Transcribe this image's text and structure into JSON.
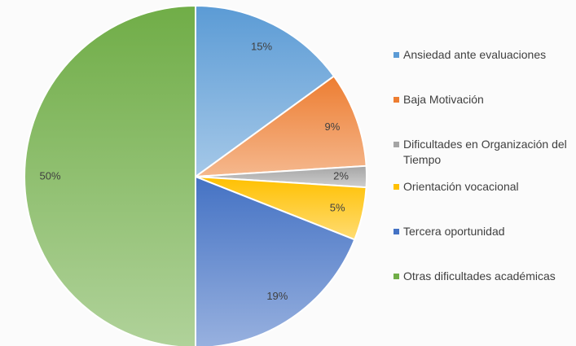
{
  "chart_data": {
    "type": "pie",
    "categories": [
      "Ansiedad ante evaluaciones",
      "Baja Motivación",
      "Dificultades en Organización del Tiempo",
      "Orientación vocacional",
      "Tercera oportunidad",
      "Otras dificultades académicas"
    ],
    "values": [
      15,
      9,
      2,
      5,
      19,
      50
    ],
    "value_labels": [
      "15%",
      "9%",
      "2%",
      "5%",
      "19%",
      "50%"
    ],
    "colors": [
      "#5b9bd5",
      "#ed7d31",
      "#a5a5a5",
      "#ffc000",
      "#4472c4",
      "#70ad47"
    ],
    "legend": "right"
  }
}
